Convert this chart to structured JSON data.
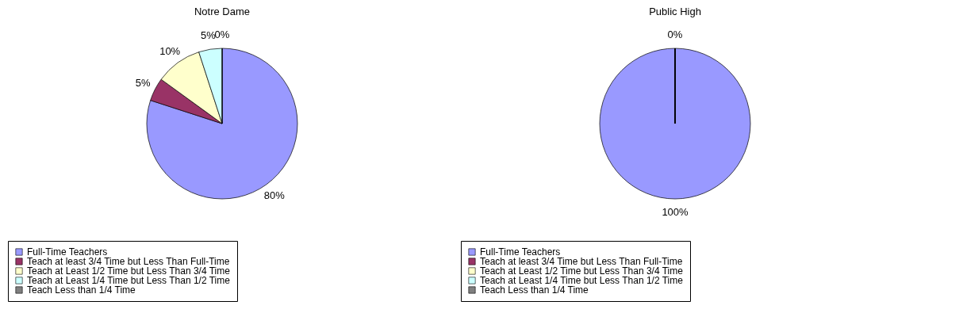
{
  "chart_data": [
    {
      "type": "pie",
      "title": "Notre Dame",
      "categories": [
        "Full-Time Teachers",
        "Teach at least 3/4 Time but Less Than Full-Time",
        "Teach at Least 1/2 Time but Less Than 3/4 Time",
        "Teach at Least 1/4 Time but Less Than 1/2 Time",
        "Teach Less than 1/4 Time"
      ],
      "values": [
        80,
        5,
        10,
        5,
        0
      ],
      "value_labels": [
        "80%",
        "5%",
        "10%",
        "5%",
        "0%"
      ],
      "colors": [
        "#9999ff",
        "#993366",
        "#ffffcc",
        "#ccffff",
        "#808080"
      ],
      "legend": "bottom"
    },
    {
      "type": "pie",
      "title": "Public High",
      "categories": [
        "Full-Time Teachers",
        "Teach at least 3/4 Time but Less Than Full-Time",
        "Teach at Least 1/2 Time but Less Than 3/4 Time",
        "Teach at Least 1/4 Time but Less Than 1/2 Time",
        "Teach Less than 1/4 Time"
      ],
      "values": [
        100,
        0,
        0,
        0,
        0
      ],
      "value_labels": [
        "100%",
        "0%",
        null,
        null,
        null
      ],
      "colors": [
        "#9999ff",
        "#993366",
        "#ffffcc",
        "#ccffff",
        "#808080"
      ],
      "legend": "bottom"
    }
  ]
}
